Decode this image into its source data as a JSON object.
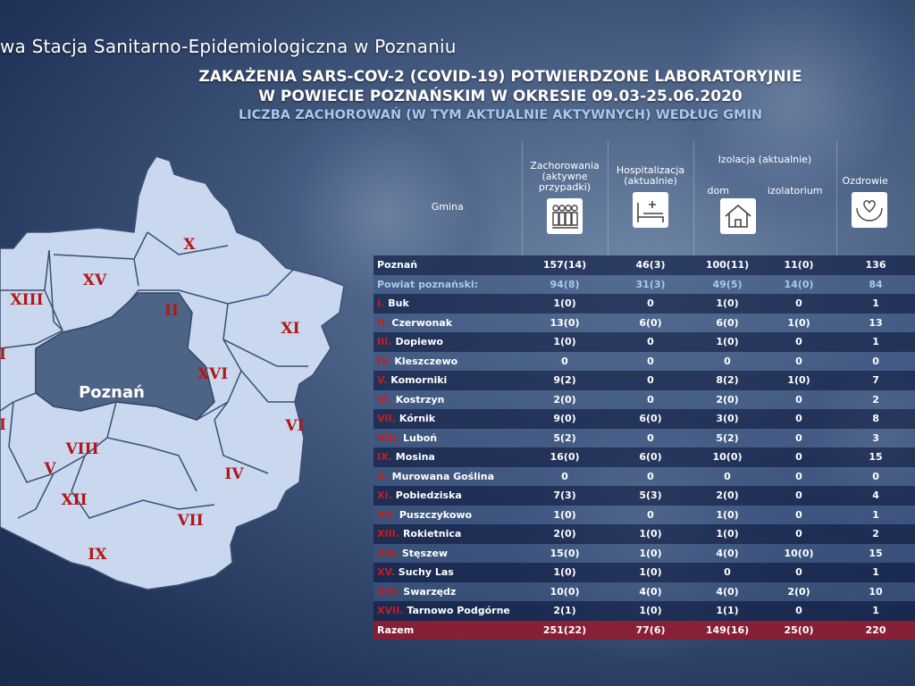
{
  "header": {
    "organization": "wa Stacja Sanitarno-Epidemiologiczna w Poznaniu",
    "title_line1": "ZAKAŻENIA SARS-COV-2 (COVID-19) POTWIERDZONE LABORATORYJNIE",
    "title_line2": "W POWIECIE POZNAŃSKIM W OKRESIE 09.03-25.06.2020",
    "subtitle": "LICZBA ZACHOROWAŃ (W TYM AKTUALNIE AKTYWNYCH) WEDŁUG GMIN"
  },
  "map": {
    "city_label": "Poznań",
    "region_labels": [
      "X",
      "XV",
      "XIII",
      "II",
      "XI",
      "XVI",
      "I",
      "VI",
      "I",
      "VIII",
      "V",
      "IV",
      "XII",
      "VII",
      "IX"
    ],
    "colors": {
      "region_fill": "#c9d7ef",
      "city_fill": "#4e6487",
      "label": "#b01818"
    }
  },
  "table": {
    "headers": {
      "gmina": "Gmina",
      "cases": "Zachorowania (aktywne przypadki)",
      "hospital": "Hospitalizacja (aktualnie)",
      "isolation": "Izolacja (aktualnie)",
      "home": "dom",
      "isolatorium": "izolatorium",
      "recovered": "Ozdrowie"
    },
    "icons": [
      "people-icon",
      "hospital-bed-icon",
      "house-icon",
      "heart-hands-icon"
    ],
    "rows": [
      {
        "roman": "",
        "name": "Poznań",
        "cases": "157(14)",
        "hospital": "46(3)",
        "home": "100(11)",
        "iso": "11(0)",
        "recovered": "136",
        "type": "city"
      },
      {
        "roman": "",
        "name": "Powiat poznański:",
        "cases": "94(8)",
        "hospital": "31(3)",
        "home": "49(5)",
        "iso": "14(0)",
        "recovered": "84",
        "type": "powiat"
      },
      {
        "roman": "I.",
        "name": "Buk",
        "cases": "1(0)",
        "hospital": "0",
        "home": "1(0)",
        "iso": "0",
        "recovered": "1"
      },
      {
        "roman": "II.",
        "name": "Czerwonak",
        "cases": "13(0)",
        "hospital": "6(0)",
        "home": "6(0)",
        "iso": "1(0)",
        "recovered": "13"
      },
      {
        "roman": "III.",
        "name": "Dopiewo",
        "cases": "1(0)",
        "hospital": "0",
        "home": "1(0)",
        "iso": "0",
        "recovered": "1"
      },
      {
        "roman": "IV.",
        "name": "Kleszczewo",
        "cases": "0",
        "hospital": "0",
        "home": "0",
        "iso": "0",
        "recovered": "0"
      },
      {
        "roman": "V.",
        "name": "Komorniki",
        "cases": "9(2)",
        "hospital": "0",
        "home": "8(2)",
        "iso": "1(0)",
        "recovered": "7"
      },
      {
        "roman": "VI.",
        "name": "Kostrzyn",
        "cases": "2(0)",
        "hospital": "0",
        "home": "2(0)",
        "iso": "0",
        "recovered": "2"
      },
      {
        "roman": "VII.",
        "name": "Kórnik",
        "cases": "9(0)",
        "hospital": "6(0)",
        "home": "3(0)",
        "iso": "0",
        "recovered": "8"
      },
      {
        "roman": "VIII.",
        "name": "Luboń",
        "cases": "5(2)",
        "hospital": "0",
        "home": "5(2)",
        "iso": "0",
        "recovered": "3"
      },
      {
        "roman": "IX.",
        "name": "Mosina",
        "cases": "16(0)",
        "hospital": "6(0)",
        "home": "10(0)",
        "iso": "0",
        "recovered": "15"
      },
      {
        "roman": "X.",
        "name": "Murowana Goślina",
        "cases": "0",
        "hospital": "0",
        "home": "0",
        "iso": "0",
        "recovered": "0"
      },
      {
        "roman": "XI.",
        "name": "Pobiedziska",
        "cases": "7(3)",
        "hospital": "5(3)",
        "home": "2(0)",
        "iso": "0",
        "recovered": "4"
      },
      {
        "roman": "XII.",
        "name": "Puszczykowo",
        "cases": "1(0)",
        "hospital": "0",
        "home": "1(0)",
        "iso": "0",
        "recovered": "1"
      },
      {
        "roman": "XIII.",
        "name": "Rokietnica",
        "cases": "2(0)",
        "hospital": "1(0)",
        "home": "1(0)",
        "iso": "0",
        "recovered": "2"
      },
      {
        "roman": "XIV.",
        "name": "Stęszew",
        "cases": "15(0)",
        "hospital": "1(0)",
        "home": "4(0)",
        "iso": "10(0)",
        "recovered": "15"
      },
      {
        "roman": "XV.",
        "name": "Suchy Las",
        "cases": "1(0)",
        "hospital": "1(0)",
        "home": "0",
        "iso": "0",
        "recovered": "1"
      },
      {
        "roman": "XVI.",
        "name": "Swarzędz",
        "cases": "10(0)",
        "hospital": "4(0)",
        "home": "4(0)",
        "iso": "2(0)",
        "recovered": "10"
      },
      {
        "roman": "XVII.",
        "name": "Tarnowo Podgórne",
        "cases": "2(1)",
        "hospital": "1(0)",
        "home": "1(1)",
        "iso": "0",
        "recovered": "1"
      },
      {
        "roman": "",
        "name": "Razem",
        "cases": "251(22)",
        "hospital": "77(6)",
        "home": "149(16)",
        "iso": "25(0)",
        "recovered": "220",
        "type": "razem"
      }
    ]
  }
}
